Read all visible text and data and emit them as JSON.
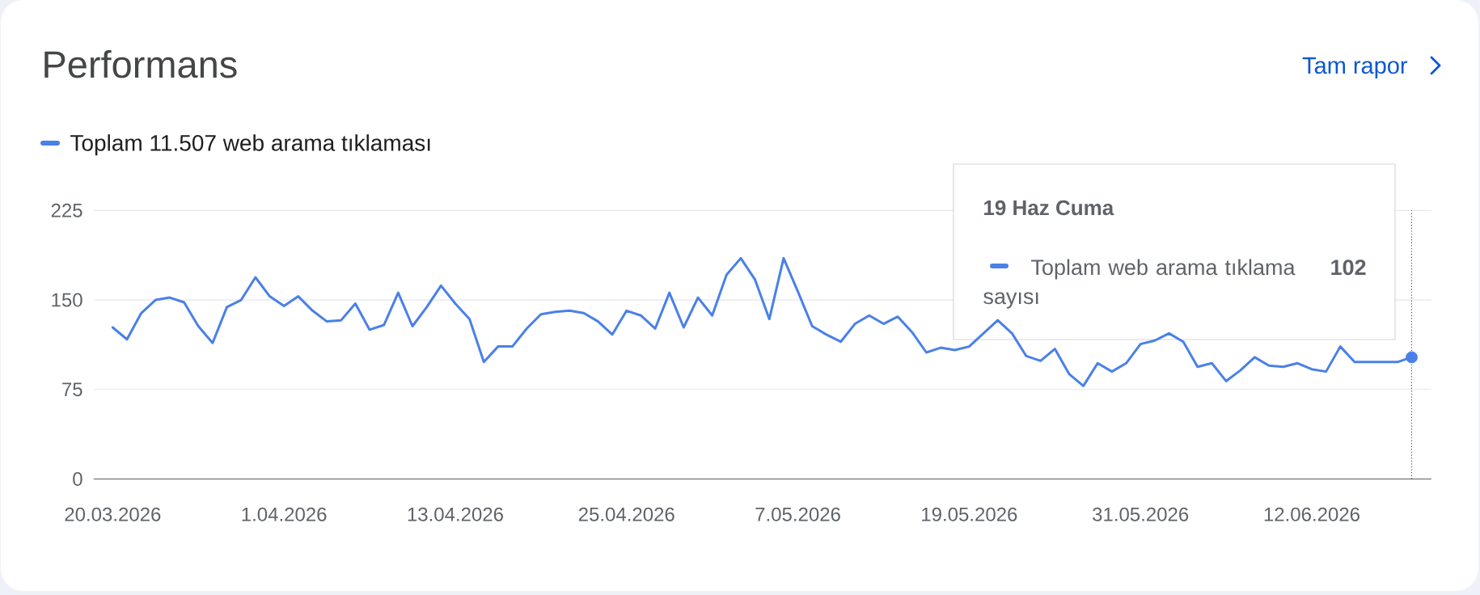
{
  "chart_data": {
    "type": "line",
    "title": "Performans",
    "annotations": [
      "Tam rapor",
      "19 Haz Cuma",
      "Toplam web arama tıklama sayısı",
      "102"
    ],
    "x": [
      "2026-03-20",
      "2026-03-21",
      "2026-03-22",
      "2026-03-23",
      "2026-03-24",
      "2026-03-25",
      "2026-03-26",
      "2026-03-27",
      "2026-03-28",
      "2026-03-29",
      "2026-03-30",
      "2026-03-31",
      "2026-04-01",
      "2026-04-02",
      "2026-04-03",
      "2026-04-04",
      "2026-04-05",
      "2026-04-06",
      "2026-04-07",
      "2026-04-08",
      "2026-04-09",
      "2026-04-10",
      "2026-04-11",
      "2026-04-12",
      "2026-04-13",
      "2026-04-14",
      "2026-04-15",
      "2026-04-16",
      "2026-04-17",
      "2026-04-18",
      "2026-04-19",
      "2026-04-20",
      "2026-04-21",
      "2026-04-22",
      "2026-04-23",
      "2026-04-24",
      "2026-04-25",
      "2026-04-26",
      "2026-04-27",
      "2026-04-28",
      "2026-04-29",
      "2026-04-30",
      "2026-05-01",
      "2026-05-02",
      "2026-05-03",
      "2026-05-04",
      "2026-05-05",
      "2026-05-06",
      "2026-05-07",
      "2026-05-08",
      "2026-05-09",
      "2026-05-10",
      "2026-05-11",
      "2026-05-12",
      "2026-05-13",
      "2026-05-14",
      "2026-05-15",
      "2026-05-16",
      "2026-05-17",
      "2026-05-18",
      "2026-05-19",
      "2026-05-20",
      "2026-05-21",
      "2026-05-22",
      "2026-05-23",
      "2026-05-24",
      "2026-05-25",
      "2026-05-26",
      "2026-05-27",
      "2026-05-28",
      "2026-05-29",
      "2026-05-30",
      "2026-05-31",
      "2026-06-01",
      "2026-06-02",
      "2026-06-03",
      "2026-06-04",
      "2026-06-05",
      "2026-06-06",
      "2026-06-07",
      "2026-06-08",
      "2026-06-09",
      "2026-06-10",
      "2026-06-11",
      "2026-06-12",
      "2026-06-13",
      "2026-06-14",
      "2026-06-15",
      "2026-06-16",
      "2026-06-17",
      "2026-06-18",
      "2026-06-19"
    ],
    "series": [
      {
        "name": "Toplam 11.507 web arama tıklaması",
        "color": "#4a80e8",
        "values": [
          127,
          117,
          139,
          150,
          152,
          148,
          128,
          114,
          144,
          150,
          169,
          153,
          145,
          153,
          141,
          132,
          133,
          147,
          125,
          129,
          156,
          128,
          144,
          162,
          147,
          134,
          98,
          111,
          111,
          126,
          138,
          140,
          141,
          139,
          132,
          121,
          141,
          137,
          126,
          156,
          127,
          152,
          137,
          171,
          185,
          167,
          134,
          185,
          157,
          128,
          121,
          115,
          130,
          137,
          130,
          136,
          123,
          106,
          110,
          108,
          111,
          122,
          133,
          122,
          103,
          99,
          109,
          88,
          78,
          97,
          90,
          97,
          113,
          116,
          122,
          115,
          94,
          97,
          82,
          91,
          102,
          95,
          94,
          97,
          92,
          90,
          111,
          98,
          98,
          98,
          98,
          102
        ]
      },
      {
        "type": "scatter",
        "x": [
          "2026-06-19"
        ],
        "values": [
          102
        ],
        "color": "#4a80e8",
        "marker": "circle"
      }
    ],
    "xlim": [
      "2026-03-18T16:00",
      "2026-06-20T09:00"
    ],
    "ylim": [
      0,
      225
    ],
    "xticks": [
      {
        "value": "2026-03-20",
        "label": "20.03.2026"
      },
      {
        "value": "2026-04-01",
        "label": "1.04.2026"
      },
      {
        "value": "2026-04-13",
        "label": "13.04.2026"
      },
      {
        "value": "2026-04-25",
        "label": "25.04.2026"
      },
      {
        "value": "2026-05-07",
        "label": "7.05.2026"
      },
      {
        "value": "2026-05-19",
        "label": "19.05.2026"
      },
      {
        "value": "2026-05-31",
        "label": "31.05.2026"
      },
      {
        "value": "2026-06-12",
        "label": "12.06.2026"
      }
    ],
    "yticks": [
      0,
      75,
      150,
      225
    ],
    "grid": "y",
    "legend": "top left",
    "ref_lines": [
      {
        "axis": "x",
        "value": "2026-06-19",
        "color": "#3c4043",
        "line_style": "dotted"
      }
    ]
  }
}
